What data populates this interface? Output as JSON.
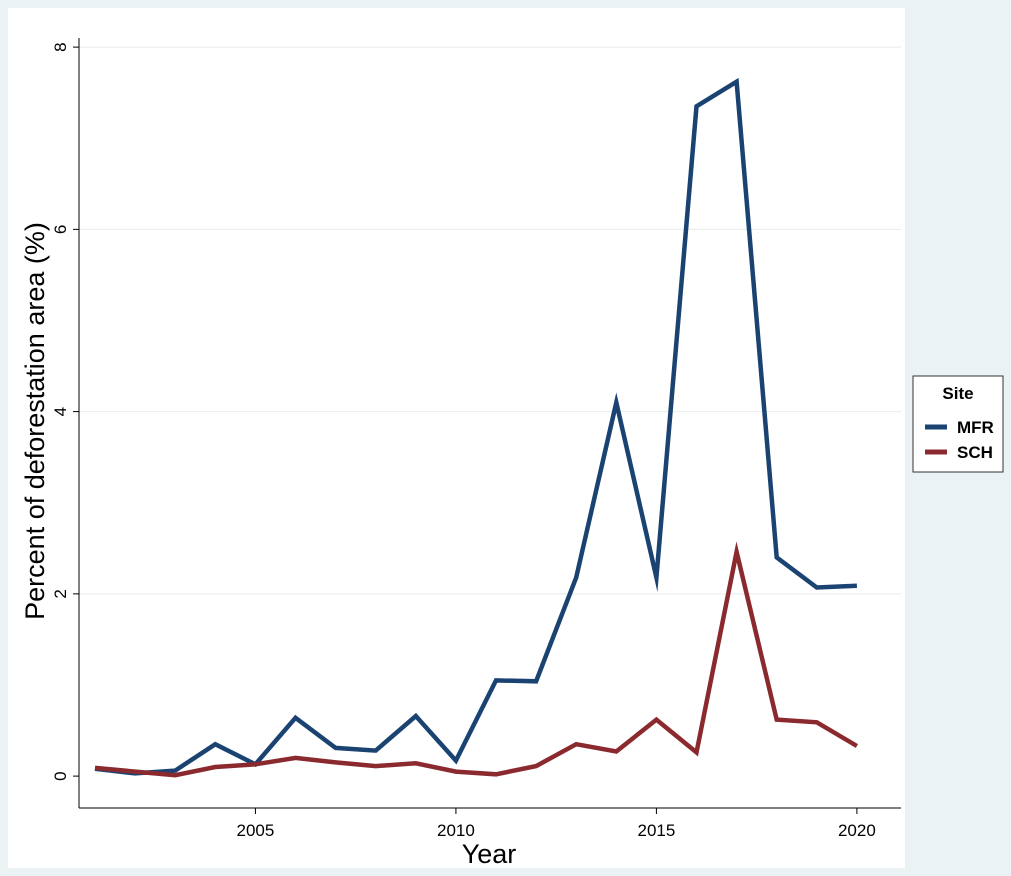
{
  "chart_data": {
    "type": "line",
    "xlabel": "Year",
    "ylabel": "Percent of deforestation area (%)",
    "xlim": [
      2000.6,
      2021.1
    ],
    "ylim": [
      -0.35,
      8.1
    ],
    "xticks": [
      2005,
      2010,
      2015,
      2020
    ],
    "yticks": [
      0,
      2,
      4,
      6,
      8
    ],
    "grid": true,
    "legend": {
      "title": "Site",
      "placement": "right"
    },
    "x": [
      2001,
      2002,
      2003,
      2004,
      2005,
      2006,
      2007,
      2008,
      2009,
      2010,
      2011,
      2012,
      2013,
      2014,
      2015,
      2016,
      2017,
      2018,
      2019,
      2020
    ],
    "series": [
      {
        "name": "MFR",
        "color": "#1a4372",
        "values": [
          0.08,
          0.03,
          0.06,
          0.35,
          0.13,
          0.64,
          0.31,
          0.28,
          0.66,
          0.17,
          1.05,
          1.04,
          2.18,
          4.1,
          2.18,
          7.35,
          7.62,
          2.4,
          2.07,
          2.09
        ]
      },
      {
        "name": "SCH",
        "color": "#8b2a2e",
        "values": [
          0.09,
          0.05,
          0.01,
          0.1,
          0.13,
          0.2,
          0.15,
          0.11,
          0.14,
          0.05,
          0.02,
          0.11,
          0.35,
          0.27,
          0.62,
          0.26,
          2.46,
          0.62,
          0.59,
          0.33
        ]
      }
    ]
  }
}
